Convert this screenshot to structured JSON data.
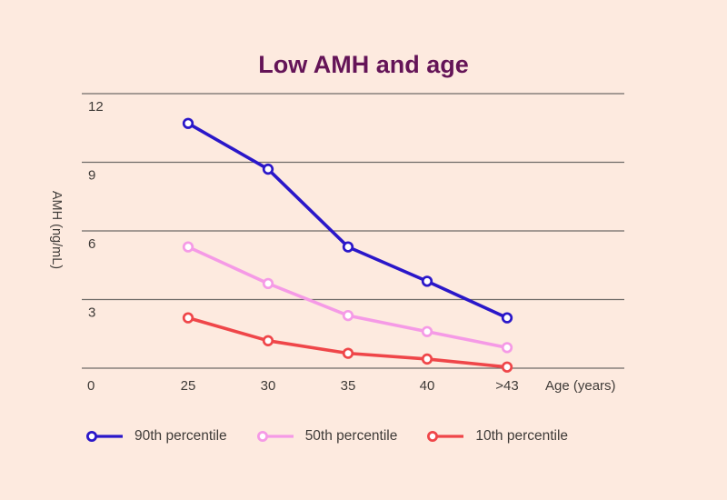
{
  "chart_data": {
    "type": "line",
    "title": "Low AMH and age",
    "xlabel": "Age (years)",
    "ylabel": "AMH (ng/mL)",
    "categories": [
      "25",
      "30",
      "35",
      "40",
      ">43"
    ],
    "origin_label": "0",
    "yticks": [
      0,
      3,
      6,
      9,
      12
    ],
    "ylim": [
      0,
      12
    ],
    "grid": "horizontal-only",
    "legend_position": "bottom",
    "series": [
      {
        "name": "90th percentile",
        "color": "#2a17c9",
        "values": [
          10.7,
          8.7,
          5.3,
          3.8,
          2.2
        ]
      },
      {
        "name": "50th percentile",
        "color": "#f59ae6",
        "values": [
          5.3,
          3.7,
          2.3,
          1.6,
          0.9
        ]
      },
      {
        "name": "10th percentile",
        "color": "#ef4649",
        "values": [
          2.2,
          1.2,
          0.65,
          0.4,
          0.05
        ]
      }
    ]
  },
  "style": {
    "background": "#fdeadf",
    "title_color": "#641457",
    "grid_color": "#6f6b68",
    "text_color": "#3f3b38",
    "marker_fill": "#ffffff"
  }
}
